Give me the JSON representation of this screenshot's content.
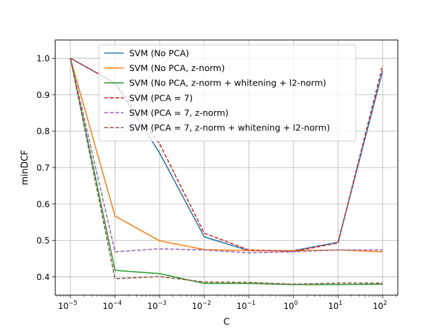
{
  "chart_data": {
    "type": "line",
    "title": "",
    "xlabel": "C",
    "ylabel": "minDCF",
    "xscale": "log",
    "x": [
      1e-05,
      0.0001,
      0.001,
      0.01,
      0.1,
      1,
      10,
      100
    ],
    "x_tick_labels": [
      {
        "base": "10",
        "exp": "−5"
      },
      {
        "base": "10",
        "exp": "−4"
      },
      {
        "base": "10",
        "exp": "−3"
      },
      {
        "base": "10",
        "exp": "−2"
      },
      {
        "base": "10",
        "exp": "−1"
      },
      {
        "base": "10",
        "exp": "0"
      },
      {
        "base": "10",
        "exp": "1"
      },
      {
        "base": "10",
        "exp": "2"
      }
    ],
    "ylim": [
      0.35,
      1.05
    ],
    "y_ticks": [
      0.4,
      0.5,
      0.6,
      0.7,
      0.8,
      0.9,
      1.0
    ],
    "y_tick_labels": [
      "0.4",
      "0.5",
      "0.6",
      "0.7",
      "0.8",
      "0.9",
      "1.0"
    ],
    "grid": true,
    "legend_position": "upper-center",
    "series": [
      {
        "name": "SVM (No PCA)",
        "color": "#1f77b4",
        "dash": "solid",
        "values": [
          1.0,
          0.932,
          0.74,
          0.51,
          0.472,
          0.472,
          0.495,
          0.965
        ]
      },
      {
        "name": "SVM (No PCA, z-norm)",
        "color": "#ff7f0e",
        "dash": "solid",
        "values": [
          1.0,
          0.567,
          0.499,
          0.475,
          0.472,
          0.472,
          0.474,
          0.469
        ]
      },
      {
        "name": "SVM (No PCA, z-norm + whitening + l2-norm)",
        "color": "#2ca02c",
        "dash": "solid",
        "values": [
          1.0,
          0.418,
          0.409,
          0.382,
          0.382,
          0.379,
          0.379,
          0.38
        ]
      },
      {
        "name": "SVM (PCA = 7)",
        "color": "#d62728",
        "dash": "dashed",
        "values": [
          1.0,
          0.932,
          0.765,
          0.52,
          0.474,
          0.47,
          0.493,
          0.98
        ]
      },
      {
        "name": "SVM (PCA = 7, z-norm)",
        "color": "#9467bd",
        "dash": "dashed",
        "values": [
          1.0,
          0.469,
          0.477,
          0.474,
          0.466,
          0.469,
          0.474,
          0.474
        ]
      },
      {
        "name": "SVM (PCA = 7, z-norm + whitening + l2-norm)",
        "color": "#8c564b",
        "dash": "dashed",
        "values": [
          1.0,
          0.395,
          0.401,
          0.386,
          0.385,
          0.38,
          0.383,
          0.383
        ]
      }
    ]
  }
}
